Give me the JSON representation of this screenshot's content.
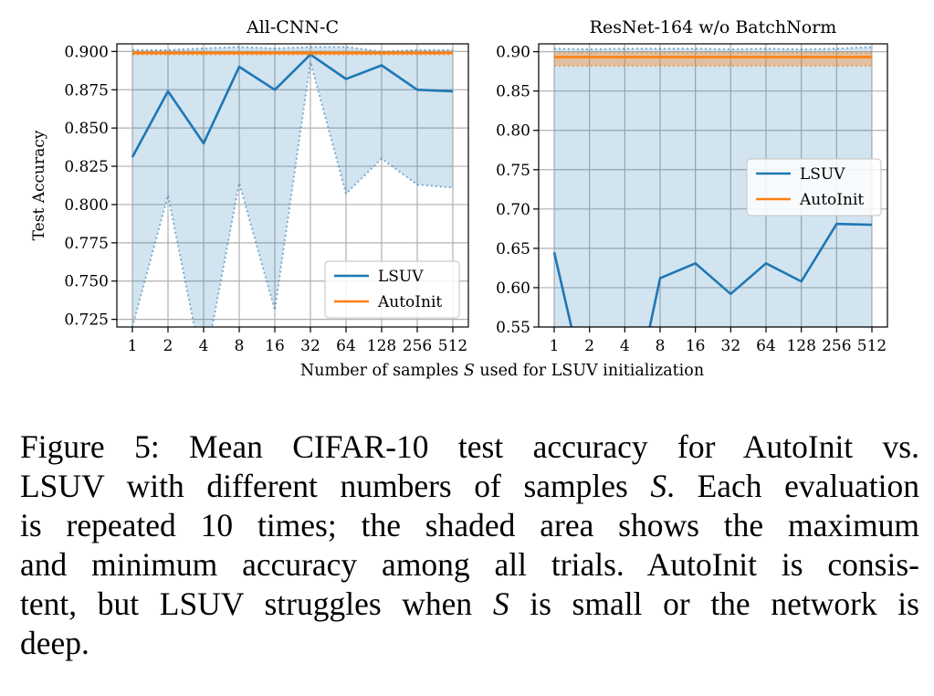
{
  "figure": {
    "shared_xlabel_prefix": "Number of samples ",
    "shared_xlabel_var": "S",
    "shared_xlabel_suffix": " used for LSUV initialization"
  },
  "chart_data": [
    {
      "type": "line",
      "title": "All-CNN-C",
      "ylabel": "Test Accuracy",
      "xlabel": "",
      "x_scale": "log2",
      "x": [
        1,
        2,
        4,
        8,
        16,
        32,
        64,
        128,
        256,
        512
      ],
      "x_tick_labels": [
        "1",
        "2",
        "4",
        "8",
        "16",
        "32",
        "64",
        "128",
        "256",
        "512"
      ],
      "ylim": [
        0.72,
        0.905
      ],
      "y_ticks": [
        0.725,
        0.75,
        0.775,
        0.8,
        0.825,
        0.85,
        0.875,
        0.9
      ],
      "y_tick_labels": [
        "0.725",
        "0.750",
        "0.775",
        "0.800",
        "0.825",
        "0.850",
        "0.875",
        "0.900"
      ],
      "grid": true,
      "legend_position": "lower-right",
      "series": [
        {
          "name": "LSUV",
          "color": "#1f77b4",
          "mean": [
            0.831,
            0.874,
            0.84,
            0.89,
            0.875,
            0.898,
            0.882,
            0.891,
            0.875,
            0.874
          ],
          "max": [
            0.901,
            0.901,
            0.902,
            0.903,
            0.902,
            0.903,
            0.903,
            0.9,
            0.901,
            0.901
          ],
          "min": [
            0.72,
            0.806,
            0.69,
            0.814,
            0.731,
            0.893,
            0.807,
            0.83,
            0.813,
            0.811
          ]
        },
        {
          "name": "AutoInit",
          "color": "#ff7f0e",
          "mean": [
            0.899,
            0.899,
            0.899,
            0.899,
            0.899,
            0.899,
            0.899,
            0.899,
            0.899,
            0.899
          ],
          "max": [
            0.9,
            0.9,
            0.9,
            0.9,
            0.9,
            0.9,
            0.9,
            0.9,
            0.9,
            0.9
          ],
          "min": [
            0.898,
            0.898,
            0.898,
            0.898,
            0.898,
            0.898,
            0.898,
            0.898,
            0.898,
            0.898
          ]
        }
      ]
    },
    {
      "type": "line",
      "title": "ResNet-164 w/o BatchNorm",
      "ylabel": "",
      "xlabel": "",
      "x_scale": "log2",
      "x": [
        1,
        2,
        4,
        8,
        16,
        32,
        64,
        128,
        256,
        512
      ],
      "x_tick_labels": [
        "1",
        "2",
        "4",
        "8",
        "16",
        "32",
        "64",
        "128",
        "256",
        "512"
      ],
      "ylim": [
        0.55,
        0.91
      ],
      "y_ticks": [
        0.55,
        0.6,
        0.65,
        0.7,
        0.75,
        0.8,
        0.85,
        0.9
      ],
      "y_tick_labels": [
        "0.55",
        "0.60",
        "0.65",
        "0.70",
        "0.75",
        "0.80",
        "0.85",
        "0.90"
      ],
      "grid": true,
      "legend_position": "center-right",
      "series": [
        {
          "name": "LSUV",
          "color": "#1f77b4",
          "mean": [
            0.645,
            0.45,
            0.4,
            0.612,
            0.631,
            0.592,
            0.631,
            0.608,
            0.681,
            0.68
          ],
          "max": [
            0.904,
            0.903,
            0.904,
            0.904,
            0.904,
            0.903,
            0.904,
            0.903,
            0.904,
            0.906
          ],
          "min": [
            0.1,
            0.1,
            0.1,
            0.1,
            0.1,
            0.1,
            0.1,
            0.1,
            0.1,
            0.1
          ]
        },
        {
          "name": "AutoInit",
          "color": "#ff7f0e",
          "mean": [
            0.893,
            0.893,
            0.893,
            0.893,
            0.893,
            0.893,
            0.893,
            0.893,
            0.893,
            0.893
          ],
          "max": [
            0.899,
            0.899,
            0.899,
            0.899,
            0.899,
            0.899,
            0.899,
            0.899,
            0.899,
            0.899
          ],
          "min": [
            0.882,
            0.882,
            0.882,
            0.882,
            0.882,
            0.882,
            0.882,
            0.882,
            0.882,
            0.882
          ]
        }
      ]
    }
  ],
  "caption": {
    "lines": [
      "Figure 5: Mean CIFAR-10 test accuracy for AutoInit vs.",
      "LSUV with different numbers of samples S. Each evaluation",
      "is repeated 10 times; the shaded area shows the maximum",
      "and minimum accuracy among all trials. AutoInit is consis-",
      "tent, but LSUV struggles when S is small or the network is",
      "deep."
    ]
  }
}
